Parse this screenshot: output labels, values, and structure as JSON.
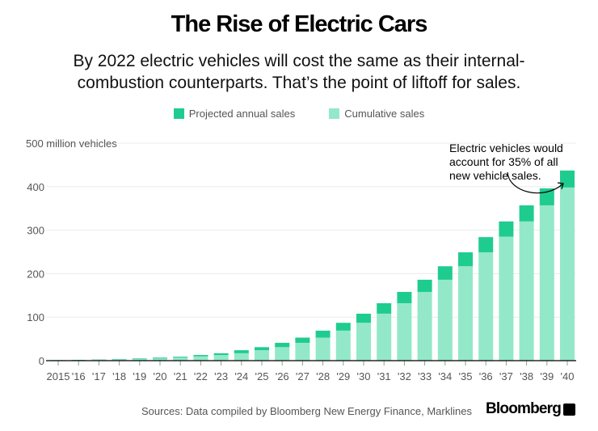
{
  "chart_data": {
    "type": "bar",
    "stacked": true,
    "title": "The Rise of Electric Cars",
    "subtitle": "By 2022 electric vehicles will cost the same as their internal-combustion counterparts. That’s the point of liftoff for sales.",
    "subtitle_lines": [
      "By 2022 electric vehicles will cost the same as their internal-",
      "combustion counterparts. That’s the point of liftoff for sales."
    ],
    "ylabel": "500 million vehicles",
    "ylim": [
      0,
      500
    ],
    "yticks": [
      0,
      100,
      200,
      300,
      400
    ],
    "grid": true,
    "legend_placement": "top",
    "categories": [
      "2015",
      "'16",
      "'17",
      "'18",
      "'19",
      "'20",
      "'21",
      "'22",
      "'23",
      "'24",
      "'25",
      "'26",
      "'27",
      "'28",
      "'29",
      "'30",
      "'31",
      "'32",
      "'33",
      "'34",
      "'35",
      "'36",
      "'37",
      "'38",
      "'39",
      "'40"
    ],
    "series": [
      {
        "name": "Cumulative sales",
        "color": "#93e8c9",
        "values": [
          0.7,
          1.2,
          1.8,
          2.5,
          3.5,
          5,
          7,
          10,
          13,
          17,
          24,
          31,
          41,
          53,
          69,
          87,
          108,
          132,
          158,
          186,
          217,
          249,
          285,
          320,
          357,
          398
        ]
      },
      {
        "name": "Projected annual sales",
        "color": "#1fcc8f",
        "values": [
          0.5,
          0.6,
          0.7,
          1.0,
          1.5,
          2,
          2,
          3,
          4,
          7,
          7,
          10,
          12,
          16,
          18,
          21,
          24,
          26,
          28,
          31,
          32,
          35,
          35,
          37,
          39,
          39
        ]
      }
    ],
    "annotation": {
      "lines": [
        "Electric vehicles would",
        "account for 35% of all",
        "new vehicle sales."
      ],
      "target": "'40"
    }
  },
  "legend": [
    {
      "label": "Projected annual sales",
      "color": "#1fcc8f"
    },
    {
      "label": "Cumulative sales",
      "color": "#93e8c9"
    }
  ],
  "source": "Sources: Data compiled by Bloomberg New Energy Finance, Marklines",
  "logo": "Bloomberg"
}
